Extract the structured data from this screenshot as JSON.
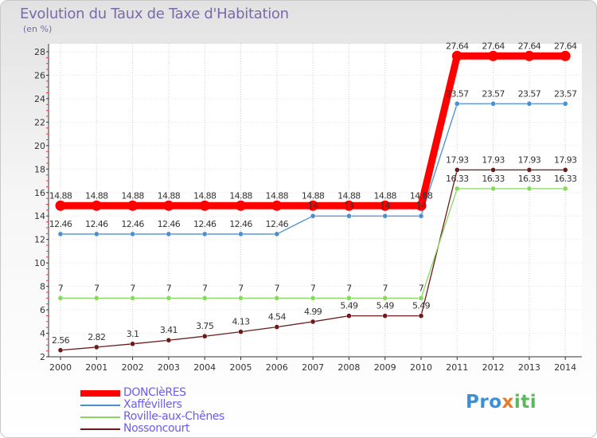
{
  "chart_data": {
    "type": "line",
    "title": "Evolution du Taux de Taxe d'Habitation",
    "subtitle": "(en %)",
    "categories": [
      "2000",
      "2001",
      "2002",
      "2003",
      "2004",
      "2005",
      "2006",
      "2007",
      "2008",
      "2009",
      "2010",
      "2011",
      "2012",
      "2013",
      "2014"
    ],
    "ylim": [
      2,
      28
    ],
    "yticks": [
      2,
      4,
      6,
      8,
      10,
      12,
      14,
      16,
      18,
      20,
      22,
      24,
      26,
      28
    ],
    "series": [
      {
        "name": "DONCIèRES",
        "color": "#ff0000",
        "values": [
          14.88,
          14.88,
          14.88,
          14.88,
          14.88,
          14.88,
          14.88,
          14.88,
          14.88,
          14.88,
          14.88,
          27.64,
          27.64,
          27.64,
          27.64
        ],
        "labels": [
          "14.88",
          "14.88",
          "14.88",
          "14.88",
          "14.88",
          "14.88",
          "14.88",
          "14.88",
          "14.88",
          "14.88",
          "14.88",
          "27.64",
          "27.64",
          "27.64",
          "27.64"
        ]
      },
      {
        "name": "Xaffévillers",
        "color": "#4a8fd0",
        "values": [
          12.46,
          12.46,
          12.46,
          12.46,
          12.46,
          12.46,
          12.46,
          14,
          14,
          14,
          14,
          23.57,
          23.57,
          23.57,
          23.57
        ],
        "labels": [
          "12.46",
          "12.46",
          "12.46",
          "12.46",
          "12.46",
          "12.46",
          "12.46",
          "14",
          "14",
          "14",
          "14",
          "23.57",
          "23.57",
          "23.57",
          "23.57"
        ]
      },
      {
        "name": "Roville-aux-Chênes",
        "color": "#88d860",
        "values": [
          7,
          7,
          7,
          7,
          7,
          7,
          7,
          7,
          7,
          7,
          7,
          16.33,
          16.33,
          16.33,
          16.33
        ],
        "labels": [
          "7",
          "7",
          "7",
          "7",
          "7",
          "7",
          "7",
          "7",
          "7",
          "7",
          "7",
          "16.33",
          "16.33",
          "16.33",
          "16.33"
        ]
      },
      {
        "name": "Nossoncourt",
        "color": "#6b1a1a",
        "values": [
          2.56,
          2.82,
          3.1,
          3.41,
          3.75,
          4.13,
          4.54,
          4.99,
          5.49,
          5.49,
          5.49,
          17.93,
          17.93,
          17.93,
          17.93
        ],
        "labels": [
          "2.56",
          "2.82",
          "3.1",
          "3.41",
          "3.75",
          "4.13",
          "4.54",
          "4.99",
          "5.49",
          "5.49",
          "5.49",
          "17.93",
          "17.93",
          "17.93",
          "17.93"
        ]
      }
    ]
  },
  "legend": {
    "items": [
      {
        "label": "DONCIèRES",
        "color": "#ff0000"
      },
      {
        "label": "Xaffévillers",
        "color": "#4a8fd0"
      },
      {
        "label": "Roville-aux-Chênes",
        "color": "#88d860"
      },
      {
        "label": "Nossoncourt",
        "color": "#6b1a1a"
      }
    ]
  },
  "logo": {
    "part1": "Pro",
    "part2": "x",
    "part3": "iti"
  }
}
